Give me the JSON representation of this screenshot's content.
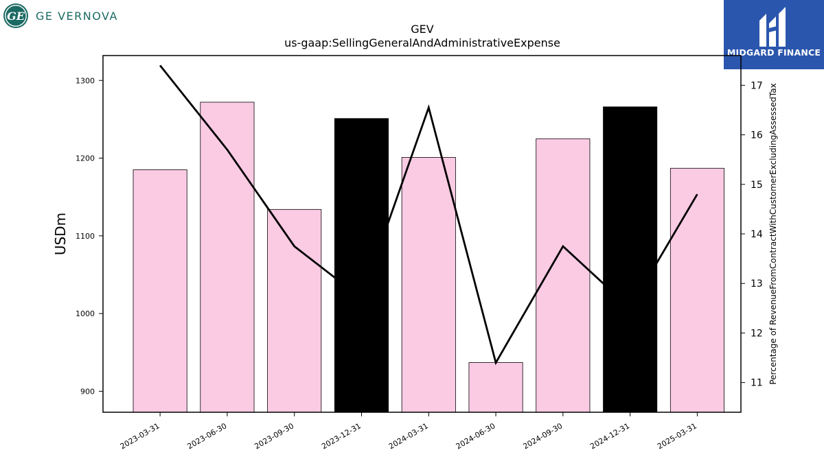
{
  "logos": {
    "left": {
      "text": "GE VERNOVA",
      "seal_text": "GE",
      "icon": "ge-monogram-icon",
      "color": "#1b6a63"
    },
    "right": {
      "text": "MIDGARD FINANCE",
      "icon": "midgard-m-icon",
      "background": "#2b56ad"
    }
  },
  "chart_data": {
    "type": "bar",
    "title": "GEV",
    "subtitle": "us-gaap:SellingGeneralAndAdministrativeExpense",
    "ylabel": "USDm",
    "y2label": "Percentage of RevenueFromContractWithCustomerExcludingAssessedTax",
    "categories": [
      "2023-03-31",
      "2023-06-30",
      "2023-09-30",
      "2023-12-31",
      "2024-03-31",
      "2024-06-30",
      "2024-09-30",
      "2024-12-31",
      "2025-03-31"
    ],
    "series": [
      {
        "values": [
          1185,
          1272,
          1134,
          1251,
          1201,
          937,
          1225,
          1266,
          1187
        ],
        "colors": [
          "#fbcbe4",
          "#fbcbe4",
          "#fbcbe4",
          "#000000",
          "#fbcbe4",
          "#fbcbe4",
          "#fbcbe4",
          "#000000",
          "#fbcbe4"
        ]
      },
      {
        "type": "line",
        "axis": "right",
        "values": [
          17.4,
          15.7,
          13.75,
          12.7,
          16.55,
          11.4,
          13.75,
          12.5,
          14.8
        ],
        "color": "#000000"
      }
    ],
    "ylim": [
      873,
      1332
    ],
    "yticks": [
      900,
      1000,
      1100,
      1200,
      1300
    ],
    "y2lim": [
      10.4,
      17.6
    ],
    "y2ticks": [
      11,
      12,
      13,
      14,
      15,
      16,
      17
    ],
    "grid": false,
    "legend": "none"
  }
}
